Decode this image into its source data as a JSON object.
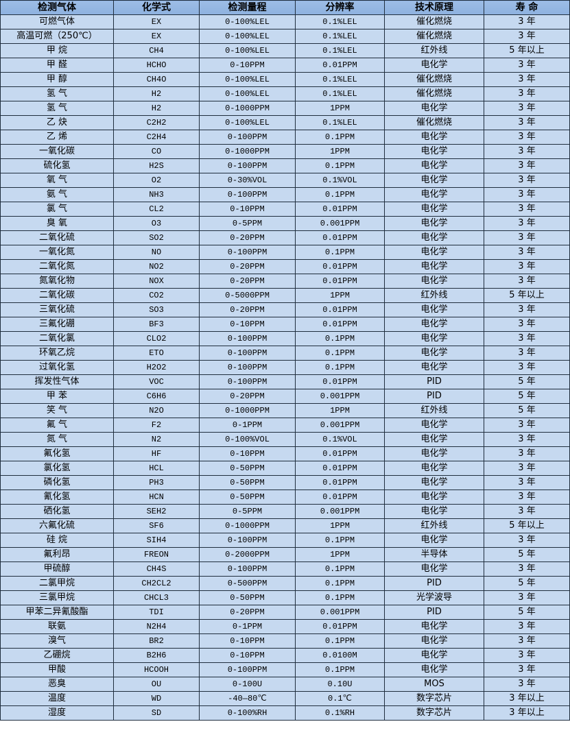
{
  "table": {
    "headers": [
      "检测气体",
      "化学式",
      "检测量程",
      "分辨率",
      "技术原理",
      "寿 命"
    ],
    "rows": [
      [
        "可燃气体",
        "EX",
        "0-100%LEL",
        "0.1%LEL",
        "催化燃烧",
        "3 年"
      ],
      [
        "高温可燃（250℃）",
        "EX",
        "0-100%LEL",
        "0.1%LEL",
        "催化燃烧",
        "3 年"
      ],
      [
        "甲 烷",
        "CH4",
        "0-100%LEL",
        "0.1%LEL",
        "红外线",
        "5 年以上"
      ],
      [
        "甲 醛",
        "HCHO",
        "0-10PPM",
        "0.01PPM",
        "电化学",
        "3 年"
      ],
      [
        "甲 醇",
        "CH4O",
        "0-100%LEL",
        "0.1%LEL",
        "催化燃烧",
        "3 年"
      ],
      [
        "氢 气",
        "H2",
        "0-100%LEL",
        "0.1%LEL",
        "催化燃烧",
        "3 年"
      ],
      [
        "氢 气",
        "H2",
        "0-1000PPM",
        "1PPM",
        "电化学",
        "3 年"
      ],
      [
        "乙 炔",
        "C2H2",
        "0-100%LEL",
        "0.1%LEL",
        "催化燃烧",
        "3 年"
      ],
      [
        "乙 烯",
        "C2H4",
        "0-100PPM",
        "0.1PPM",
        "电化学",
        "3 年"
      ],
      [
        "一氧化碳",
        "CO",
        "0-1000PPM",
        "1PPM",
        "电化学",
        "3 年"
      ],
      [
        "硫化氢",
        "H2S",
        "0-100PPM",
        "0.1PPM",
        "电化学",
        "3 年"
      ],
      [
        "氧 气",
        "O2",
        "0-30%VOL",
        "0.1%VOL",
        "电化学",
        "3 年"
      ],
      [
        "氨 气",
        "NH3",
        "0-100PPM",
        "0.1PPM",
        "电化学",
        "3 年"
      ],
      [
        "氯 气",
        "CL2",
        "0-10PPM",
        "0.01PPM",
        "电化学",
        "3 年"
      ],
      [
        "臭 氧",
        "O3",
        "0-5PPM",
        "0.001PPM",
        "电化学",
        "3 年"
      ],
      [
        "二氧化硫",
        "SO2",
        "0-20PPM",
        "0.01PPM",
        "电化学",
        "3 年"
      ],
      [
        "一氧化氮",
        "NO",
        "0-100PPM",
        "0.1PPM",
        "电化学",
        "3 年"
      ],
      [
        "二氧化氮",
        "NO2",
        "0-20PPM",
        "0.01PPM",
        "电化学",
        "3 年"
      ],
      [
        "氮氧化物",
        "NOX",
        "0-20PPM",
        "0.01PPM",
        "电化学",
        "3 年"
      ],
      [
        "二氧化碳",
        "CO2",
        "0-5000PPM",
        "1PPM",
        "红外线",
        "5 年以上"
      ],
      [
        "三氧化硫",
        "SO3",
        "0-20PPM",
        "0.01PPM",
        "电化学",
        "3 年"
      ],
      [
        "三氟化硼",
        "BF3",
        "0-10PPM",
        "0.01PPM",
        "电化学",
        "3 年"
      ],
      [
        "二氧化氯",
        "CLO2",
        "0-100PPM",
        "0.1PPM",
        "电化学",
        "3 年"
      ],
      [
        "环氧乙烷",
        "ETO",
        "0-100PPM",
        "0.1PPM",
        "电化学",
        "3 年"
      ],
      [
        "过氧化氢",
        "H2O2",
        "0-100PPM",
        "0.1PPM",
        "电化学",
        "3 年"
      ],
      [
        "挥发性气体",
        "VOC",
        "0-100PPM",
        "0.01PPM",
        "PID",
        "5 年"
      ],
      [
        "甲 苯",
        "C6H6",
        "0-20PPM",
        "0.001PPM",
        "PID",
        "5 年"
      ],
      [
        "笑 气",
        "N2O",
        "0-1000PPM",
        "1PPM",
        "红外线",
        "5 年"
      ],
      [
        "氟 气",
        "F2",
        "0-1PPM",
        "0.001PPM",
        "电化学",
        "3 年"
      ],
      [
        "氮 气",
        "N2",
        "0-100%VOL",
        "0.1%VOL",
        "电化学",
        "3 年"
      ],
      [
        "氟化氢",
        "HF",
        "0-10PPM",
        "0.01PPM",
        "电化学",
        "3 年"
      ],
      [
        "氯化氢",
        "HCL",
        "0-50PPM",
        "0.01PPM",
        "电化学",
        "3 年"
      ],
      [
        "磷化氢",
        "PH3",
        "0-50PPM",
        "0.01PPM",
        "电化学",
        "3 年"
      ],
      [
        "氰化氢",
        "HCN",
        "0-50PPM",
        "0.01PPM",
        "电化学",
        "3 年"
      ],
      [
        "硒化氢",
        "SEH2",
        "0-5PPM",
        "0.001PPM",
        "电化学",
        "3 年"
      ],
      [
        "六氟化硫",
        "SF6",
        "0-1000PPM",
        "1PPM",
        "红外线",
        "5 年以上"
      ],
      [
        "硅 烷",
        "SIH4",
        "0-100PPM",
        "0.1PPM",
        "电化学",
        "3 年"
      ],
      [
        "氟利昂",
        "FREON",
        "0-2000PPM",
        "1PPM",
        "半导体",
        "5 年"
      ],
      [
        "甲硫醇",
        "CH4S",
        "0-100PPM",
        "0.1PPM",
        "电化学",
        "3 年"
      ],
      [
        "二氯甲烷",
        "CH2CL2",
        "0-500PPM",
        "0.1PPM",
        "PID",
        "5 年"
      ],
      [
        "三氯甲烷",
        "CHCL3",
        "0-50PPM",
        "0.1PPM",
        "光学波导",
        "3 年"
      ],
      [
        "甲苯二异氰酸酯",
        "TDI",
        "0-20PPM",
        "0.001PPM",
        "PID",
        "5 年"
      ],
      [
        "联氨",
        "N2H4",
        "0-1PPM",
        "0.01PPM",
        "电化学",
        "3 年"
      ],
      [
        "溴气",
        "BR2",
        "0-10PPM",
        "0.1PPM",
        "电化学",
        "3 年"
      ],
      [
        "乙硼烷",
        "B2H6",
        "0-10PPM",
        "0.0100M",
        "电化学",
        "3 年"
      ],
      [
        "甲酸",
        "HCOOH",
        "0-100PPM",
        "0.1PPM",
        "电化学",
        "3 年"
      ],
      [
        "恶臭",
        "OU",
        "0-100U",
        "0.10U",
        "MOS",
        "3 年"
      ],
      [
        "温度",
        "WD",
        "-40—80℃",
        "0.1℃",
        "数字芯片",
        "3 年以上"
      ],
      [
        "湿度",
        "SD",
        "0-100%RH",
        "0.1%RH",
        "数字芯片",
        "3 年以上"
      ]
    ]
  },
  "colors": {
    "header_bg": "#8db1df",
    "row_bg": "#c6d9f0",
    "border": "#1f2d3d"
  }
}
